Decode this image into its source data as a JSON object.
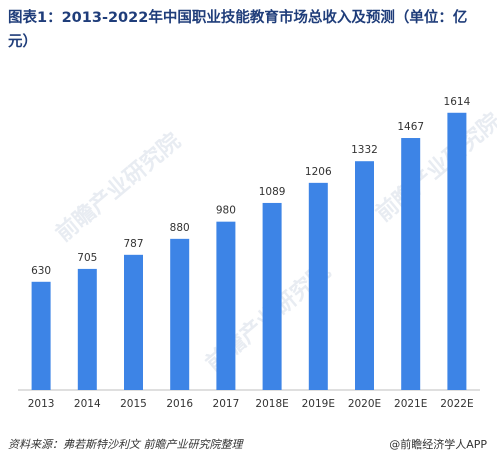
{
  "title": "图表1：2013-2022年中国职业技能教育市场总收入及预测（单位：亿元）",
  "source": "资料来源：弗若斯特沙利文 前瞻产业研究院整理",
  "brand": "@前瞻经济学人APP",
  "watermark": "前瞻产业研究院",
  "colors": {
    "bar": "#3d84e6",
    "axis": "#bfbfbf",
    "title": "#1f3d7a"
  },
  "chart_data": {
    "type": "bar",
    "title": "图表1：2013-2022年中国职业技能教育市场总收入及预测（单位：亿元）",
    "categories": [
      "2013",
      "2014",
      "2015",
      "2016",
      "2017",
      "2018E",
      "2019E",
      "2020E",
      "2021E",
      "2022E"
    ],
    "values": [
      630,
      705,
      787,
      880,
      980,
      1089,
      1206,
      1332,
      1467,
      1614
    ],
    "xlabel": "",
    "ylabel": "",
    "ylim": [
      0,
      1700
    ],
    "grid": false,
    "legend": "none"
  }
}
